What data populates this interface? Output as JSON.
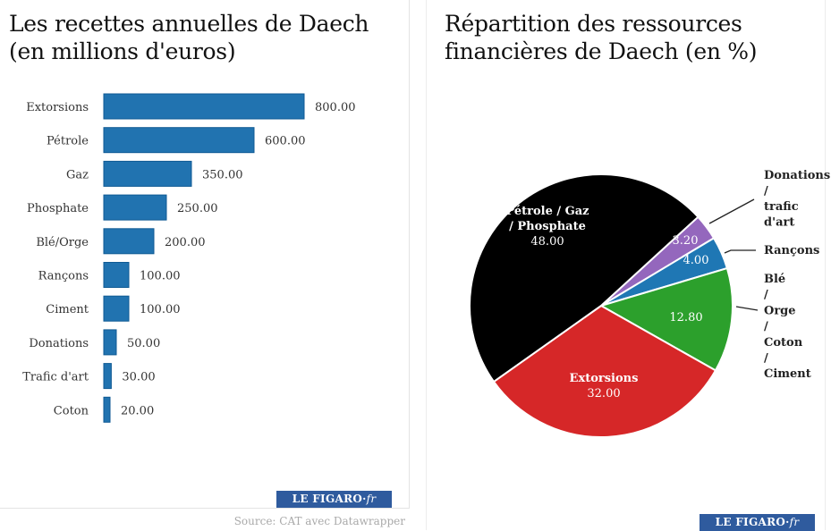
{
  "bar_panel": {
    "title": "Les recettes annuelles de Daech (en millions d'euros)",
    "logo_text": "LE FIGARO·",
    "logo_suffix": "fr",
    "source": "Source: CAT avec Datawrapper"
  },
  "pie_panel": {
    "title": "Répartition des ressources financières de Daech (en %)",
    "logo_text": "LE FIGARO·",
    "logo_suffix": "fr"
  },
  "colors": {
    "bar": "#2173b0",
    "bar_border": "#0f5a94",
    "logo_bg": "#2f5b9e"
  },
  "chart_data": [
    {
      "type": "bar",
      "orientation": "horizontal",
      "title": "Les recettes annuelles de Daech (en millions d'euros)",
      "xlabel": "",
      "ylabel": "",
      "categories": [
        "Extorsions",
        "Pétrole",
        "Gaz",
        "Phosphate",
        "Blé/Orge",
        "Rançons",
        "Ciment",
        "Donations",
        "Trafic d'art",
        "Coton"
      ],
      "values": [
        800,
        600,
        350,
        250,
        200,
        100,
        100,
        50,
        30,
        20
      ],
      "value_labels": [
        "800.00",
        "600.00",
        "350.00",
        "250.00",
        "200.00",
        "100.00",
        "100.00",
        "50.00",
        "30.00",
        "20.00"
      ],
      "xlim": [
        0,
        800
      ],
      "grid": false,
      "color": "#2173b0"
    },
    {
      "type": "pie",
      "title": "Répartition des ressources financières de Daech (en %)",
      "slices": [
        {
          "label": "Donations / trafic d'art",
          "label_lines": [
            "Donations",
            "/",
            "trafic",
            "d'art"
          ],
          "value": 3.2,
          "value_label": "3.20",
          "color": "#9467bd",
          "label_position": "outside"
        },
        {
          "label": "Rançons",
          "label_lines": [
            "Rançons"
          ],
          "value": 4.0,
          "value_label": "4.00",
          "color": "#1f77b4",
          "label_position": "outside"
        },
        {
          "label": "Blé / Orge / Coton / Ciment",
          "label_lines": [
            "Blé",
            "/",
            "Orge",
            "/",
            "Coton",
            "/",
            "Ciment"
          ],
          "value": 12.8,
          "value_label": "12.80",
          "color": "#2ca02c",
          "label_position": "outside"
        },
        {
          "label": "Extorsions",
          "label_lines": [
            "Extorsions"
          ],
          "value": 32.0,
          "value_label": "32.00",
          "color": "#d62728",
          "label_position": "inside"
        },
        {
          "label": "Pétrole / Gaz / Phosphate",
          "label_lines": [
            "Pétrole / Gaz",
            "/ Phosphate"
          ],
          "value": 48.0,
          "value_label": "48.00",
          "color": "#000000",
          "label_position": "inside"
        }
      ],
      "start_angle_deg": -42.5,
      "direction": "clockwise"
    }
  ]
}
